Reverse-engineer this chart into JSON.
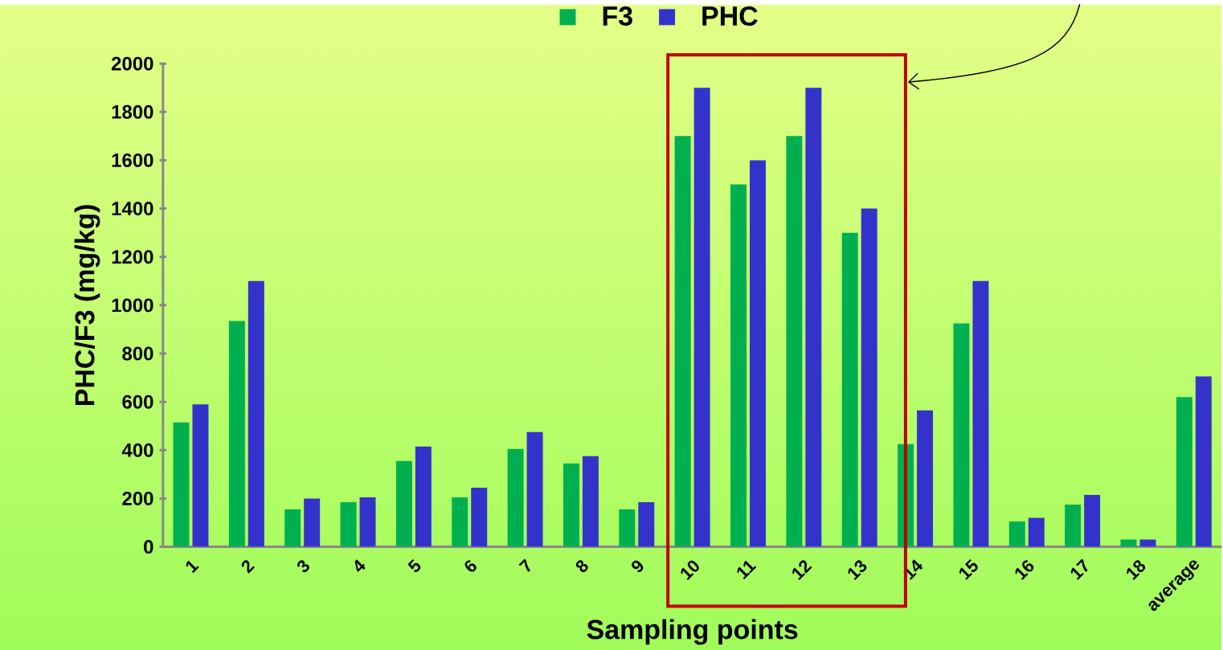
{
  "chart_data": {
    "type": "bar",
    "xlabel": "Sampling points",
    "ylabel": "PHC/F3 (mg/kg)",
    "categories": [
      "1",
      "2",
      "3",
      "4",
      "5",
      "6",
      "7",
      "8",
      "9",
      "10",
      "11",
      "12",
      "13",
      "14",
      "15",
      "16",
      "17",
      "18",
      "average"
    ],
    "series": [
      {
        "name": "F3",
        "color": "#00b050",
        "values": [
          515,
          935,
          155,
          185,
          355,
          205,
          405,
          345,
          155,
          1700,
          1500,
          1700,
          1300,
          425,
          925,
          105,
          175,
          30,
          620
        ]
      },
      {
        "name": "PHC",
        "color": "#3333cc",
        "values": [
          590,
          1100,
          200,
          205,
          415,
          245,
          475,
          375,
          185,
          1900,
          1600,
          1900,
          1400,
          565,
          1100,
          120,
          215,
          30,
          705
        ]
      }
    ],
    "ylim": [
      0,
      2000
    ],
    "yticks": [
      0,
      200,
      400,
      600,
      800,
      1000,
      1200,
      1400,
      1600,
      1800,
      2000
    ],
    "legend": "top"
  }
}
